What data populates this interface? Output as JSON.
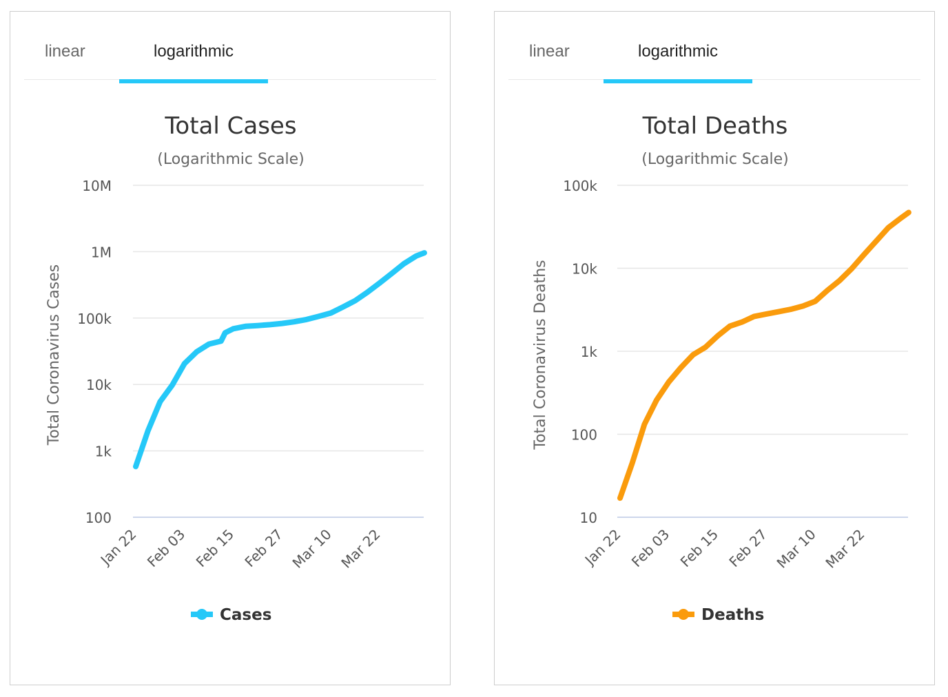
{
  "panels": [
    {
      "tabs": [
        {
          "label": "linear",
          "active": false
        },
        {
          "label": "logarithmic",
          "active": true
        }
      ],
      "accent": "#25c8f8",
      "chart_data": {
        "type": "line",
        "title": "Total Cases",
        "subtitle": "(Logarithmic Scale)",
        "ylabel": "Total Coronavirus Cases",
        "yscale": "log",
        "ylim": [
          100,
          10000000
        ],
        "yticks": [
          100,
          1000,
          10000,
          100000,
          1000000,
          10000000
        ],
        "ytick_labels": [
          "100",
          "1k",
          "10k",
          "100k",
          "1M",
          "10M"
        ],
        "xticks": [
          "Jan 22",
          "Feb 03",
          "Feb 15",
          "Feb 27",
          "Mar 10",
          "Mar 22"
        ],
        "grid": true,
        "legend": "bottom",
        "series": [
          {
            "name": "Cases",
            "color": "#25c8f8",
            "x": [
              "Jan 22",
              "Jan 25",
              "Jan 28",
              "Jan 31",
              "Feb 03",
              "Feb 06",
              "Feb 09",
              "Feb 12",
              "Feb 13",
              "Feb 15",
              "Feb 18",
              "Feb 21",
              "Feb 24",
              "Feb 27",
              "Mar 01",
              "Mar 04",
              "Mar 07",
              "Mar 10",
              "Mar 13",
              "Mar 16",
              "Mar 19",
              "Mar 22",
              "Mar 25",
              "Mar 28",
              "Mar 31",
              "Apr 02"
            ],
            "values": [
              580,
              2000,
              5500,
              9800,
              20600,
              31000,
              40500,
              45000,
              60000,
              69000,
              75000,
              77000,
              79500,
              83000,
              88000,
              95000,
              106000,
              119000,
              147000,
              183000,
              245000,
              337000,
              470000,
              660000,
              860000,
              960000
            ]
          }
        ]
      }
    },
    {
      "tabs": [
        {
          "label": "linear",
          "active": false
        },
        {
          "label": "logarithmic",
          "active": true
        }
      ],
      "accent": "#25c8f8",
      "chart_data": {
        "type": "line",
        "title": "Total Deaths",
        "subtitle": "(Logarithmic Scale)",
        "ylabel": "Total Coronavirus Deaths",
        "yscale": "log",
        "ylim": [
          10,
          100000
        ],
        "yticks": [
          10,
          100,
          1000,
          10000,
          100000
        ],
        "ytick_labels": [
          "10",
          "100",
          "1k",
          "10k",
          "100k"
        ],
        "xticks": [
          "Jan 22",
          "Feb 03",
          "Feb 15",
          "Feb 27",
          "Mar 10",
          "Mar 22"
        ],
        "grid": true,
        "legend": "bottom",
        "series": [
          {
            "name": "Deaths",
            "color": "#fa9b0c",
            "x": [
              "Jan 22",
              "Jan 25",
              "Jan 28",
              "Jan 31",
              "Feb 03",
              "Feb 06",
              "Feb 09",
              "Feb 12",
              "Feb 15",
              "Feb 18",
              "Feb 21",
              "Feb 24",
              "Feb 27",
              "Mar 01",
              "Mar 04",
              "Mar 07",
              "Mar 10",
              "Mar 13",
              "Mar 16",
              "Mar 19",
              "Mar 22",
              "Mar 25",
              "Mar 28",
              "Mar 31",
              "Apr 02"
            ],
            "values": [
              17,
              45,
              132,
              259,
              427,
              638,
              910,
              1118,
              1527,
              2004,
              2250,
              2629,
              2810,
              2996,
              3200,
              3500,
              4000,
              5400,
              7100,
              9900,
              14600,
              21200,
              30800,
              40000,
              47000
            ]
          }
        ]
      }
    }
  ]
}
